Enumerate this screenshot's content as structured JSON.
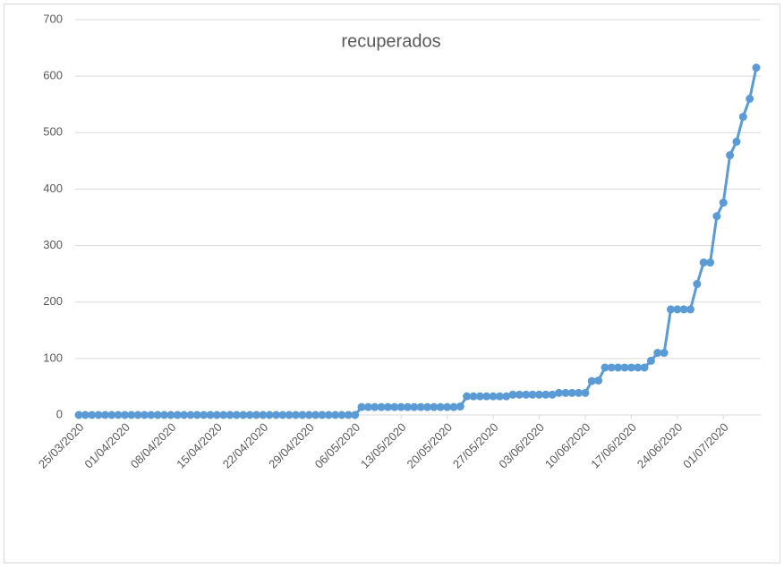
{
  "chart_data": {
    "type": "line",
    "title": "recuperados",
    "categories": [
      "25/03/2020",
      null,
      null,
      null,
      null,
      null,
      null,
      "01/04/2020",
      null,
      null,
      null,
      null,
      null,
      null,
      "08/04/2020",
      null,
      null,
      null,
      null,
      null,
      null,
      "15/04/2020",
      null,
      null,
      null,
      null,
      null,
      null,
      "22/04/2020",
      null,
      null,
      null,
      null,
      null,
      null,
      "29/04/2020",
      null,
      null,
      null,
      null,
      null,
      null,
      "06/05/2020",
      null,
      null,
      null,
      null,
      null,
      null,
      "13/05/2020",
      null,
      null,
      null,
      null,
      null,
      null,
      "20/05/2020",
      null,
      null,
      null,
      null,
      null,
      null,
      "27/05/2020",
      null,
      null,
      null,
      null,
      null,
      null,
      "03/06/2020",
      null,
      null,
      null,
      null,
      null,
      null,
      "10/06/2020",
      null,
      null,
      null,
      null,
      null,
      null,
      "17/06/2020",
      null,
      null,
      null,
      null,
      null,
      null,
      "24/06/2020",
      null,
      null,
      null,
      null,
      null,
      null,
      "01/07/2020",
      null,
      null,
      null,
      null,
      null
    ],
    "series": [
      {
        "color": "#5b9bd5",
        "values": [
          0,
          0,
          0,
          0,
          0,
          0,
          0,
          0,
          0,
          0,
          0,
          0,
          0,
          0,
          0,
          0,
          0,
          0,
          0,
          0,
          0,
          0,
          0,
          0,
          0,
          0,
          0,
          0,
          0,
          0,
          0,
          0,
          0,
          0,
          0,
          0,
          0,
          0,
          0,
          0,
          0,
          0,
          0,
          14,
          14,
          14,
          14,
          14,
          14,
          14,
          14,
          14,
          14,
          14,
          14,
          14,
          14,
          14,
          15,
          33,
          33,
          33,
          33,
          33,
          33,
          33,
          36,
          36,
          36,
          36,
          36,
          36,
          36,
          39,
          39,
          39,
          39,
          39,
          60,
          61,
          84,
          84,
          84,
          84,
          84,
          84,
          84,
          96,
          110,
          110,
          187,
          187,
          187,
          187,
          232,
          270,
          270,
          352,
          376,
          460,
          484,
          528,
          560,
          615
        ]
      }
    ],
    "ylim": [
      0,
      700
    ],
    "yticks": [
      0,
      100,
      200,
      300,
      400,
      500,
      600,
      700
    ],
    "grid": true
  }
}
